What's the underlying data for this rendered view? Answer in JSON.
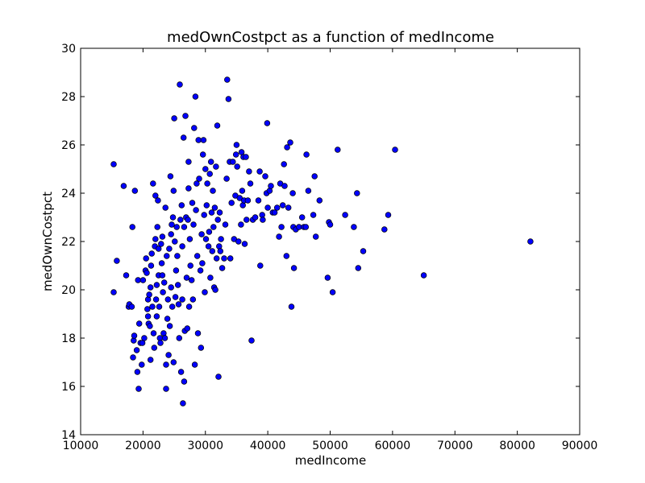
{
  "chart_data": {
    "type": "scatter",
    "title": "medOwnCostpct as a function of medIncome",
    "xlabel": "medIncome",
    "ylabel": "medOwnCostpct",
    "xlim": [
      10000,
      90000
    ],
    "ylim": [
      14,
      30
    ],
    "xticks": [
      "10000",
      "20000",
      "30000",
      "40000",
      "50000",
      "60000",
      "70000",
      "80000",
      "90000"
    ],
    "yticks": [
      "14",
      "16",
      "18",
      "20",
      "22",
      "24",
      "26",
      "28",
      "30"
    ],
    "grid": false,
    "legend": "none",
    "marker_color": "#0000ff",
    "points": [
      [
        15300,
        25.2
      ],
      [
        15300,
        19.9
      ],
      [
        15800,
        21.2
      ],
      [
        16900,
        24.3
      ],
      [
        17300,
        20.6
      ],
      [
        17700,
        19.3
      ],
      [
        17800,
        19.4
      ],
      [
        18200,
        19.3
      ],
      [
        18300,
        22.6
      ],
      [
        18400,
        17.2
      ],
      [
        18500,
        17.9
      ],
      [
        18600,
        18.1
      ],
      [
        18700,
        24.1
      ],
      [
        19000,
        17.5
      ],
      [
        19100,
        16.6
      ],
      [
        19200,
        20.4
      ],
      [
        19300,
        15.9
      ],
      [
        19400,
        18.6
      ],
      [
        19600,
        17.8
      ],
      [
        19800,
        16.9
      ],
      [
        19900,
        17.8
      ],
      [
        20000,
        20.4
      ],
      [
        20200,
        18.0
      ],
      [
        20400,
        20.8
      ],
      [
        20500,
        21.3
      ],
      [
        20600,
        20.7
      ],
      [
        20700,
        19.2
      ],
      [
        20800,
        18.9
      ],
      [
        20800,
        19.6
      ],
      [
        20900,
        18.6
      ],
      [
        21000,
        19.8
      ],
      [
        21100,
        18.5
      ],
      [
        21200,
        17.1
      ],
      [
        21200,
        20.1
      ],
      [
        21300,
        21.0
      ],
      [
        21400,
        21.5
      ],
      [
        21500,
        19.3
      ],
      [
        21600,
        24.4
      ],
      [
        21700,
        18.2
      ],
      [
        21800,
        17.6
      ],
      [
        21900,
        21.8
      ],
      [
        22000,
        22.1
      ],
      [
        22000,
        23.9
      ],
      [
        22100,
        19.6
      ],
      [
        22200,
        20.2
      ],
      [
        22200,
        18.9
      ],
      [
        22300,
        22.6
      ],
      [
        22400,
        23.7
      ],
      [
        22500,
        21.7
      ],
      [
        22500,
        20.6
      ],
      [
        22600,
        19.3
      ],
      [
        22700,
        18.0
      ],
      [
        22800,
        17.8
      ],
      [
        22900,
        21.9
      ],
      [
        23000,
        21.1
      ],
      [
        23100,
        20.6
      ],
      [
        23100,
        22.2
      ],
      [
        23200,
        19.9
      ],
      [
        23300,
        18.2
      ],
      [
        23400,
        20.3
      ],
      [
        23500,
        18.0
      ],
      [
        23600,
        23.4
      ],
      [
        23700,
        15.9
      ],
      [
        23700,
        16.9
      ],
      [
        23800,
        21.4
      ],
      [
        23900,
        18.8
      ],
      [
        24000,
        19.6
      ],
      [
        24100,
        17.3
      ],
      [
        24200,
        21.7
      ],
      [
        24300,
        18.5
      ],
      [
        24400,
        24.7
      ],
      [
        24500,
        22.3
      ],
      [
        24500,
        20.1
      ],
      [
        24600,
        22.7
      ],
      [
        24700,
        19.3
      ],
      [
        24800,
        23.0
      ],
      [
        24900,
        17.0
      ],
      [
        24900,
        24.1
      ],
      [
        25000,
        27.1
      ],
      [
        25100,
        22.0
      ],
      [
        25200,
        19.7
      ],
      [
        25300,
        20.8
      ],
      [
        25400,
        22.6
      ],
      [
        25500,
        21.4
      ],
      [
        25600,
        20.2
      ],
      [
        25700,
        19.4
      ],
      [
        25800,
        18.0
      ],
      [
        25900,
        28.5
      ],
      [
        26000,
        22.9
      ],
      [
        26100,
        16.6
      ],
      [
        26200,
        23.5
      ],
      [
        26300,
        21.8
      ],
      [
        26300,
        19.6
      ],
      [
        26400,
        15.3
      ],
      [
        26500,
        26.3
      ],
      [
        26600,
        22.6
      ],
      [
        26600,
        16.2
      ],
      [
        26700,
        18.3
      ],
      [
        26800,
        27.2
      ],
      [
        26900,
        23.0
      ],
      [
        27000,
        20.5
      ],
      [
        27100,
        18.4
      ],
      [
        27200,
        22.9
      ],
      [
        27300,
        25.3
      ],
      [
        27300,
        24.2
      ],
      [
        27400,
        19.3
      ],
      [
        27500,
        22.1
      ],
      [
        27600,
        21.0
      ],
      [
        27800,
        20.4
      ],
      [
        27900,
        23.6
      ],
      [
        28000,
        19.6
      ],
      [
        28100,
        22.7
      ],
      [
        28200,
        26.7
      ],
      [
        28300,
        16.9
      ],
      [
        28400,
        28.0
      ],
      [
        28500,
        23.3
      ],
      [
        28600,
        24.4
      ],
      [
        28700,
        21.4
      ],
      [
        28800,
        18.2
      ],
      [
        28900,
        26.2
      ],
      [
        29000,
        24.6
      ],
      [
        29200,
        20.8
      ],
      [
        29300,
        17.6
      ],
      [
        29400,
        22.3
      ],
      [
        29500,
        21.1
      ],
      [
        29600,
        25.6
      ],
      [
        29700,
        26.2
      ],
      [
        29800,
        23.1
      ],
      [
        29900,
        19.9
      ],
      [
        30000,
        25.0
      ],
      [
        30100,
        22.1
      ],
      [
        30200,
        23.5
      ],
      [
        30300,
        24.4
      ],
      [
        30500,
        21.8
      ],
      [
        30600,
        22.4
      ],
      [
        30700,
        24.8
      ],
      [
        30800,
        20.5
      ],
      [
        30900,
        25.3
      ],
      [
        31000,
        23.2
      ],
      [
        31100,
        21.6
      ],
      [
        31200,
        24.1
      ],
      [
        31300,
        22.6
      ],
      [
        31400,
        20.1
      ],
      [
        31500,
        23.4
      ],
      [
        31600,
        20.0
      ],
      [
        31700,
        25.1
      ],
      [
        31800,
        21.3
      ],
      [
        31900,
        26.8
      ],
      [
        32000,
        22.9
      ],
      [
        32100,
        16.4
      ],
      [
        32200,
        21.8
      ],
      [
        32300,
        23.2
      ],
      [
        32400,
        21.6
      ],
      [
        32500,
        22.1
      ],
      [
        32700,
        20.9
      ],
      [
        33000,
        21.3
      ],
      [
        33200,
        22.7
      ],
      [
        33400,
        24.6
      ],
      [
        33500,
        28.7
      ],
      [
        33700,
        27.9
      ],
      [
        33900,
        25.3
      ],
      [
        34000,
        21.3
      ],
      [
        34200,
        23.6
      ],
      [
        34400,
        25.3
      ],
      [
        34600,
        22.1
      ],
      [
        34800,
        23.9
      ],
      [
        34900,
        25.6
      ],
      [
        35000,
        26.0
      ],
      [
        35100,
        25.1
      ],
      [
        35300,
        22.0
      ],
      [
        35500,
        23.8
      ],
      [
        35700,
        22.7
      ],
      [
        35800,
        25.7
      ],
      [
        35900,
        24.1
      ],
      [
        36000,
        23.5
      ],
      [
        36100,
        25.5
      ],
      [
        36200,
        23.7
      ],
      [
        36300,
        21.9
      ],
      [
        36500,
        25.5
      ],
      [
        36600,
        22.9
      ],
      [
        36800,
        23.7
      ],
      [
        37000,
        24.9
      ],
      [
        37200,
        24.4
      ],
      [
        37400,
        17.9
      ],
      [
        37600,
        22.9
      ],
      [
        38000,
        23.0
      ],
      [
        38500,
        23.7
      ],
      [
        38700,
        24.9
      ],
      [
        38800,
        21.0
      ],
      [
        39100,
        23.1
      ],
      [
        39200,
        22.9
      ],
      [
        39600,
        24.7
      ],
      [
        39800,
        24.0
      ],
      [
        39900,
        26.9
      ],
      [
        40000,
        23.4
      ],
      [
        40300,
        24.1
      ],
      [
        40500,
        24.3
      ],
      [
        40800,
        23.2
      ],
      [
        41100,
        23.2
      ],
      [
        41500,
        23.4
      ],
      [
        41800,
        22.2
      ],
      [
        42000,
        24.4
      ],
      [
        42200,
        22.6
      ],
      [
        42400,
        23.5
      ],
      [
        42600,
        25.2
      ],
      [
        42700,
        24.3
      ],
      [
        43000,
        21.4
      ],
      [
        43100,
        25.9
      ],
      [
        43300,
        23.4
      ],
      [
        43600,
        26.1
      ],
      [
        43800,
        19.3
      ],
      [
        44000,
        24.0
      ],
      [
        44100,
        22.6
      ],
      [
        44200,
        20.9
      ],
      [
        44500,
        22.5
      ],
      [
        45000,
        22.6
      ],
      [
        45500,
        23.0
      ],
      [
        45800,
        22.6
      ],
      [
        46100,
        22.6
      ],
      [
        46200,
        25.6
      ],
      [
        46500,
        24.1
      ],
      [
        47300,
        23.1
      ],
      [
        47500,
        24.7
      ],
      [
        47700,
        22.2
      ],
      [
        48300,
        23.7
      ],
      [
        49600,
        20.5
      ],
      [
        49800,
        22.8
      ],
      [
        50000,
        22.7
      ],
      [
        50400,
        19.9
      ],
      [
        51200,
        25.8
      ],
      [
        52400,
        23.1
      ],
      [
        53800,
        22.6
      ],
      [
        54300,
        24.0
      ],
      [
        54500,
        20.9
      ],
      [
        55300,
        21.6
      ],
      [
        58700,
        22.5
      ],
      [
        59300,
        23.1
      ],
      [
        60400,
        25.8
      ],
      [
        65000,
        20.6
      ],
      [
        82100,
        22.0
      ]
    ]
  }
}
